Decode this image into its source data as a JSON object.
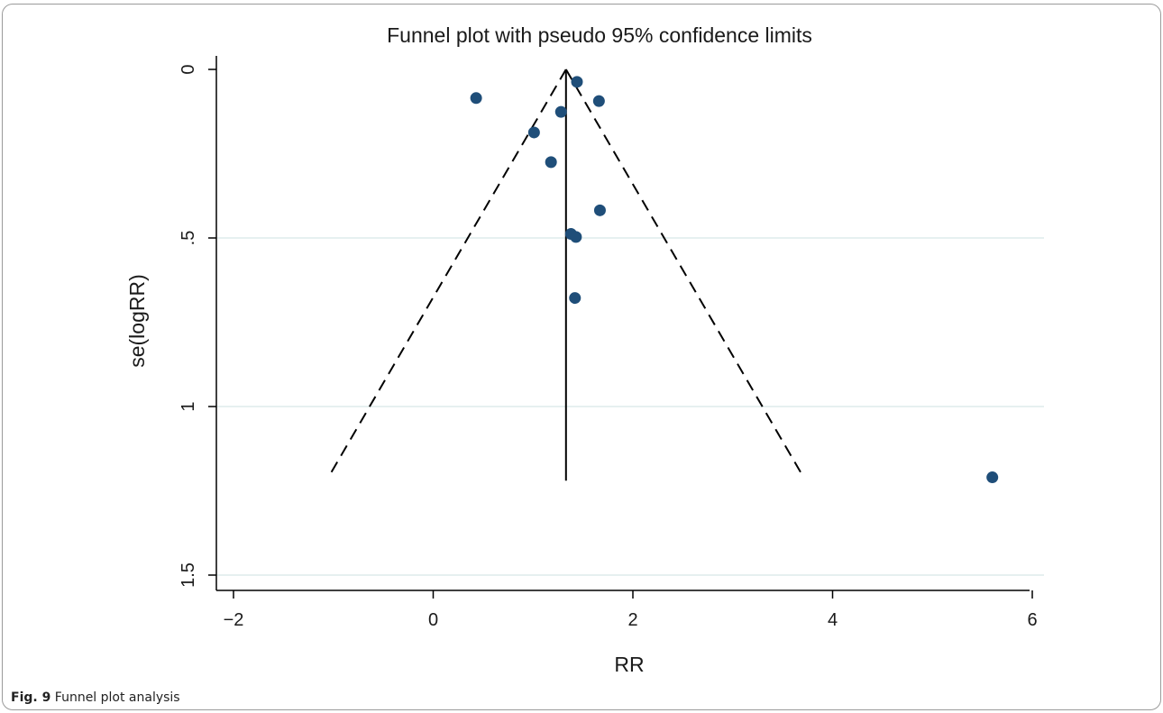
{
  "caption": {
    "label": "Fig. 9",
    "text": "Funnel plot analysis"
  },
  "chart_data": {
    "type": "scatter",
    "title": "Funnel plot with pseudo 95% confidence limits",
    "xlabel": "RR",
    "ylabel": "se(logRR)",
    "xlim": [
      -2.2,
      6.15
    ],
    "ylim": [
      0,
      1.5
    ],
    "y_inverted": true,
    "xticks": [
      -2,
      0,
      2,
      4,
      6
    ],
    "xtick_labels": [
      "−2",
      "0",
      "2",
      "4",
      "6"
    ],
    "yticks": [
      0,
      0.5,
      1,
      1.5
    ],
    "ytick_labels": [
      "0",
      ".5",
      "1",
      "1.5"
    ],
    "grid": "horizontal",
    "pooled_estimate": 1.33,
    "funnel_apex": {
      "x": 1.33,
      "y": 0
    },
    "funnel_bottom": {
      "y": 1.2,
      "left_x": -1.03,
      "right_x": 3.69
    },
    "points": [
      {
        "x": 1.44,
        "y": 0.037
      },
      {
        "x": 0.43,
        "y": 0.085
      },
      {
        "x": 1.66,
        "y": 0.094
      },
      {
        "x": 1.28,
        "y": 0.126
      },
      {
        "x": 1.01,
        "y": 0.187
      },
      {
        "x": 1.18,
        "y": 0.275
      },
      {
        "x": 1.67,
        "y": 0.418
      },
      {
        "x": 1.38,
        "y": 0.488
      },
      {
        "x": 1.43,
        "y": 0.497
      },
      {
        "x": 1.42,
        "y": 0.678
      },
      {
        "x": 5.6,
        "y": 1.21
      }
    ],
    "colors": {
      "marker": "#1f4e79",
      "grid": "#e6f0f0",
      "axis": "#000000"
    }
  }
}
